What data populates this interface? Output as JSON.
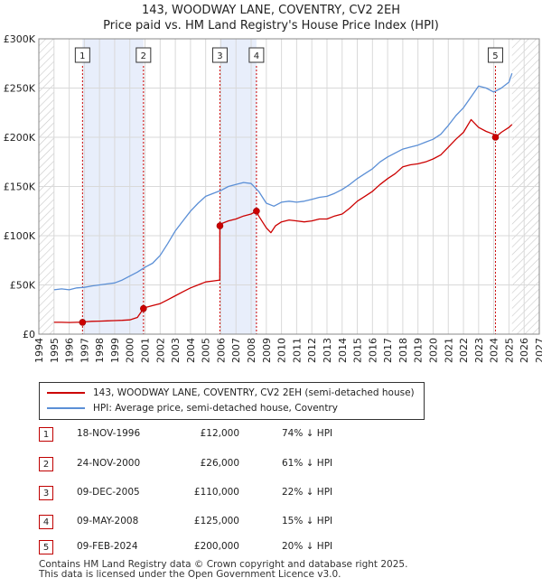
{
  "title_line1": "143, WOODWAY LANE, COVENTRY, CV2 2EH",
  "title_line2": "Price paid vs. HM Land Registry's House Price Index (HPI)",
  "colors": {
    "price": "#cc0000",
    "hpi": "#5b8fd6",
    "shade": "#e8eefb",
    "hatch": "#c8c8c8",
    "grid": "#d9d9d9"
  },
  "legend": {
    "price_label": "143, WOODWAY LANE, COVENTRY, CV2 2EH (semi-detached house)",
    "hpi_label": "HPI: Average price, semi-detached house, Coventry"
  },
  "sales": [
    {
      "num": "1",
      "date": "18-NOV-1996",
      "price": "£12,000",
      "hpi": "74% ↓ HPI"
    },
    {
      "num": "2",
      "date": "24-NOV-2000",
      "price": "£26,000",
      "hpi": "61% ↓ HPI"
    },
    {
      "num": "3",
      "date": "09-DEC-2005",
      "price": "£110,000",
      "hpi": "22% ↓ HPI"
    },
    {
      "num": "4",
      "date": "09-MAY-2008",
      "price": "£125,000",
      "hpi": "15% ↓ HPI"
    },
    {
      "num": "5",
      "date": "09-FEB-2024",
      "price": "£200,000",
      "hpi": "20% ↓ HPI"
    }
  ],
  "footer_line1": "Contains HM Land Registry data © Crown copyright and database right 2025.",
  "footer_line2": "This data is licensed under the Open Government Licence v3.0.",
  "chart_data": {
    "type": "line",
    "title": "143, WOODWAY LANE, COVENTRY, CV2 2EH — Price paid vs. HM Land Registry's House Price Index (HPI)",
    "xlabel": "",
    "ylabel": "",
    "xlim": [
      1994,
      2027
    ],
    "ylim": [
      0,
      300000
    ],
    "y_ticks": [
      0,
      50000,
      100000,
      150000,
      200000,
      250000,
      300000
    ],
    "y_tick_labels": [
      "£0",
      "£50K",
      "£100K",
      "£150K",
      "£200K",
      "£250K",
      "£300K"
    ],
    "x_ticks": [
      1994,
      1995,
      1996,
      1997,
      1998,
      1999,
      2000,
      2001,
      2002,
      2003,
      2004,
      2005,
      2006,
      2007,
      2008,
      2009,
      2010,
      2011,
      2012,
      2013,
      2014,
      2015,
      2016,
      2017,
      2018,
      2019,
      2020,
      2021,
      2022,
      2023,
      2024,
      2025,
      2026,
      2027
    ],
    "data_start": 1995.0,
    "data_end": 2025.2,
    "shaded_periods": [
      [
        1996.88,
        2000.9
      ],
      [
        2005.94,
        2008.35
      ]
    ],
    "sale_markers": [
      {
        "label": "1",
        "x": 1996.88,
        "y": 12000
      },
      {
        "label": "2",
        "x": 2000.9,
        "y": 26000
      },
      {
        "label": "3",
        "x": 2005.94,
        "y": 110000
      },
      {
        "label": "4",
        "x": 2008.35,
        "y": 125000
      },
      {
        "label": "5",
        "x": 2024.11,
        "y": 200000
      }
    ],
    "series": [
      {
        "name": "HPI: Average price, semi-detached house, Coventry",
        "x": [
          1995.0,
          1995.5,
          1996.0,
          1996.5,
          1997.0,
          1997.5,
          1998.0,
          1998.5,
          1999.0,
          1999.5,
          2000.0,
          2000.5,
          2001.0,
          2001.5,
          2002.0,
          2002.5,
          2003.0,
          2003.5,
          2004.0,
          2004.5,
          2005.0,
          2005.5,
          2006.0,
          2006.5,
          2007.0,
          2007.5,
          2008.0,
          2008.5,
          2009.0,
          2009.5,
          2010.0,
          2010.5,
          2011.0,
          2011.5,
          2012.0,
          2012.5,
          2013.0,
          2013.5,
          2014.0,
          2014.5,
          2015.0,
          2015.5,
          2016.0,
          2016.5,
          2017.0,
          2017.5,
          2018.0,
          2018.5,
          2019.0,
          2019.5,
          2020.0,
          2020.5,
          2021.0,
          2021.5,
          2022.0,
          2022.5,
          2023.0,
          2023.5,
          2024.0,
          2024.5,
          2025.0,
          2025.2
        ],
        "values": [
          45000,
          46000,
          45000,
          47000,
          47500,
          49000,
          50000,
          51000,
          52000,
          55000,
          59000,
          63000,
          68000,
          72000,
          80000,
          92000,
          105000,
          115000,
          125000,
          133000,
          140000,
          143000,
          146000,
          150000,
          152000,
          154000,
          153000,
          145000,
          133000,
          130000,
          134000,
          135000,
          134000,
          135000,
          137000,
          139000,
          140000,
          143000,
          147000,
          152000,
          158000,
          163000,
          168000,
          175000,
          180000,
          184000,
          188000,
          190000,
          192000,
          195000,
          198000,
          203000,
          212000,
          222000,
          230000,
          241000,
          252000,
          250000,
          246000,
          250000,
          256000,
          265000
        ]
      },
      {
        "name": "143, WOODWAY LANE, COVENTRY, CV2 2EH (semi-detached house)",
        "x": [
          1995.0,
          1995.5,
          1996.0,
          1996.5,
          1996.88,
          1997.0,
          1997.5,
          1998.0,
          1998.5,
          1999.0,
          1999.5,
          2000.0,
          2000.5,
          2000.9,
          2001.0,
          2001.5,
          2002.0,
          2002.5,
          2003.0,
          2003.5,
          2004.0,
          2004.5,
          2005.0,
          2005.5,
          2005.93,
          2005.94,
          2006.0,
          2006.5,
          2007.0,
          2007.5,
          2008.0,
          2008.35,
          2008.5,
          2009.0,
          2009.3,
          2009.6,
          2010.0,
          2010.5,
          2011.0,
          2011.5,
          2012.0,
          2012.5,
          2013.0,
          2013.5,
          2014.0,
          2014.5,
          2015.0,
          2015.5,
          2016.0,
          2016.5,
          2017.0,
          2017.5,
          2018.0,
          2018.5,
          2019.0,
          2019.5,
          2020.0,
          2020.5,
          2021.0,
          2021.5,
          2022.0,
          2022.5,
          2023.0,
          2023.5,
          2024.0,
          2024.11,
          2024.5,
          2025.0,
          2025.2
        ],
        "values": [
          12000,
          12000,
          11800,
          12000,
          12000,
          12500,
          13000,
          13200,
          13500,
          13800,
          14000,
          14500,
          17000,
          26000,
          27000,
          29000,
          31000,
          35000,
          39000,
          43000,
          47000,
          50000,
          53000,
          54000,
          55000,
          110000,
          112000,
          115000,
          117000,
          120000,
          122000,
          125000,
          120000,
          108000,
          103000,
          110000,
          114000,
          116000,
          115000,
          114000,
          115000,
          117000,
          117000,
          120000,
          122000,
          128000,
          135000,
          140000,
          145000,
          152000,
          158000,
          163000,
          170000,
          172000,
          173000,
          175000,
          178000,
          182000,
          190000,
          198000,
          205000,
          218000,
          210000,
          206000,
          203000,
          200000,
          205000,
          210000,
          213000
        ]
      }
    ]
  }
}
